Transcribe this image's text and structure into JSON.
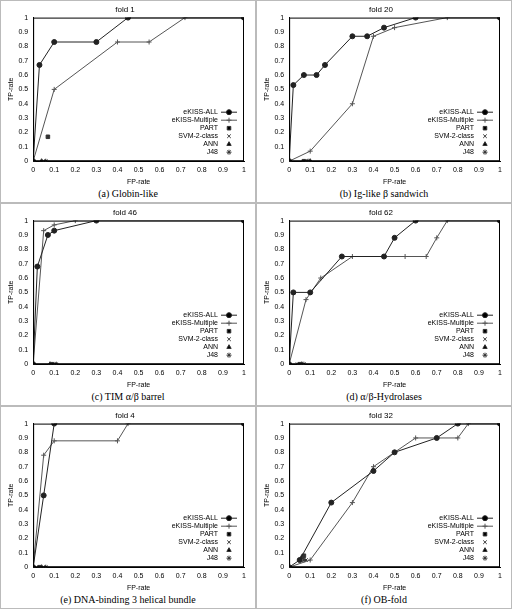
{
  "chart_data": [
    {
      "type": "line",
      "title": "fold 1",
      "caption": "(a) Globin-like",
      "x_label": "FP-rate",
      "y_label": "TP-rate",
      "xlim": [
        0,
        1
      ],
      "ylim": [
        0,
        1
      ],
      "xticks": [
        0,
        0.1,
        0.2,
        0.3,
        0.4,
        0.5,
        0.6,
        0.7,
        0.8,
        0.9,
        1
      ],
      "yticks": [
        0,
        0.1,
        0.2,
        0.3,
        0.4,
        0.5,
        0.6,
        0.7,
        0.8,
        0.9,
        1
      ],
      "grid": false,
      "legend": "bottom-right",
      "series": [
        {
          "name": "eKISS-ALL",
          "color": "#222222",
          "marker": "circle",
          "line_style": "solid",
          "x": [
            0,
            0.03,
            0.1,
            0.3,
            0.45,
            1
          ],
          "values": [
            0,
            0.67,
            0.83,
            0.83,
            1,
            1
          ]
        },
        {
          "name": "eKISS-Multiple",
          "color": "#555555",
          "marker": "cross",
          "line_style": "solid",
          "x": [
            0,
            0.1,
            0.4,
            0.55,
            0.72,
            1
          ],
          "values": [
            0,
            0.5,
            0.83,
            0.83,
            1,
            1
          ]
        },
        {
          "name": "PART",
          "color": "#333333",
          "marker": "rect",
          "line_style": "none",
          "x": [
            0.07,
            1
          ],
          "values": [
            0.17,
            1
          ]
        },
        {
          "name": "SVM-2-class",
          "color": "#333333",
          "marker": "crossRot",
          "line_style": "none",
          "x": [
            0.05,
            1
          ],
          "values": [
            0,
            1
          ]
        },
        {
          "name": "ANN",
          "color": "#333333",
          "marker": "triangle",
          "line_style": "none",
          "x": [
            0.04,
            1
          ],
          "values": [
            0,
            1
          ]
        },
        {
          "name": "J48",
          "color": "#333333",
          "marker": "star",
          "line_style": "none",
          "x": [
            0.06,
            1
          ],
          "values": [
            0,
            1
          ]
        }
      ]
    },
    {
      "type": "line",
      "title": "fold 20",
      "caption": "(b) Ig-like β sandwich",
      "x_label": "FP-rate",
      "y_label": "TP-rate",
      "xlim": [
        0,
        1
      ],
      "ylim": [
        0,
        1
      ],
      "xticks": [
        0,
        0.1,
        0.2,
        0.3,
        0.4,
        0.5,
        0.6,
        0.7,
        0.8,
        0.9,
        1
      ],
      "yticks": [
        0,
        0.1,
        0.2,
        0.3,
        0.4,
        0.5,
        0.6,
        0.7,
        0.8,
        0.9,
        1
      ],
      "grid": false,
      "legend": "bottom-right",
      "series": [
        {
          "name": "eKISS-ALL",
          "color": "#222222",
          "marker": "circle",
          "line_style": "solid",
          "x": [
            0,
            0.02,
            0.07,
            0.13,
            0.17,
            0.3,
            0.37,
            0.45,
            0.6,
            1
          ],
          "values": [
            0,
            0.53,
            0.6,
            0.6,
            0.67,
            0.87,
            0.87,
            0.93,
            1,
            1
          ]
        },
        {
          "name": "eKISS-Multiple",
          "color": "#555555",
          "marker": "cross",
          "line_style": "solid",
          "x": [
            0,
            0.1,
            0.3,
            0.4,
            0.5,
            0.75,
            1
          ],
          "values": [
            0,
            0.07,
            0.4,
            0.87,
            0.93,
            1,
            1
          ]
        },
        {
          "name": "PART",
          "color": "#333333",
          "marker": "rect",
          "line_style": "none",
          "x": [
            0.07,
            1
          ],
          "values": [
            0,
            1
          ]
        },
        {
          "name": "SVM-2-class",
          "color": "#333333",
          "marker": "crossRot",
          "line_style": "none",
          "x": [
            0.08,
            1
          ],
          "values": [
            0,
            1
          ]
        },
        {
          "name": "ANN",
          "color": "#333333",
          "marker": "triangle",
          "line_style": "none",
          "x": [
            0.1,
            1
          ],
          "values": [
            0,
            1
          ]
        },
        {
          "name": "J48",
          "color": "#333333",
          "marker": "star",
          "line_style": "none",
          "x": [
            0.09,
            1
          ],
          "values": [
            0,
            1
          ]
        }
      ]
    },
    {
      "type": "line",
      "title": "fold 46",
      "caption": "(c) TIM α/β barrel",
      "x_label": "FP-rate",
      "y_label": "TP-rate",
      "xlim": [
        0,
        1
      ],
      "ylim": [
        0,
        1
      ],
      "xticks": [
        0,
        0.1,
        0.2,
        0.3,
        0.4,
        0.5,
        0.6,
        0.7,
        0.8,
        0.9,
        1
      ],
      "yticks": [
        0,
        0.1,
        0.2,
        0.3,
        0.4,
        0.5,
        0.6,
        0.7,
        0.8,
        0.9,
        1
      ],
      "grid": false,
      "legend": "bottom-right",
      "series": [
        {
          "name": "eKISS-ALL",
          "color": "#222222",
          "marker": "circle",
          "line_style": "solid",
          "x": [
            0,
            0.02,
            0.07,
            0.1,
            0.3,
            1
          ],
          "values": [
            0,
            0.68,
            0.9,
            0.93,
            1,
            1
          ]
        },
        {
          "name": "eKISS-Multiple",
          "color": "#555555",
          "marker": "cross",
          "line_style": "solid",
          "x": [
            0,
            0.05,
            0.1,
            0.2,
            1
          ],
          "values": [
            0,
            0.93,
            0.97,
            1,
            1
          ]
        },
        {
          "name": "PART",
          "color": "#333333",
          "marker": "rect",
          "line_style": "none",
          "x": [
            0.09,
            1
          ],
          "values": [
            0,
            1
          ]
        },
        {
          "name": "SVM-2-class",
          "color": "#333333",
          "marker": "crossRot",
          "line_style": "none",
          "x": [
            0.1,
            1
          ],
          "values": [
            0,
            1
          ]
        },
        {
          "name": "ANN",
          "color": "#333333",
          "marker": "triangle",
          "line_style": "none",
          "x": [
            0.08,
            1
          ],
          "values": [
            0,
            1
          ]
        },
        {
          "name": "J48",
          "color": "#333333",
          "marker": "star",
          "line_style": "none",
          "x": [
            0.11,
            1
          ],
          "values": [
            0,
            1
          ]
        }
      ]
    },
    {
      "type": "line",
      "title": "fold 62",
      "caption": "(d) α/β-Hydrolases",
      "x_label": "FP-rate",
      "y_label": "TP-rate",
      "xlim": [
        0,
        1
      ],
      "ylim": [
        0,
        1
      ],
      "xticks": [
        0,
        0.1,
        0.2,
        0.3,
        0.4,
        0.5,
        0.6,
        0.7,
        0.8,
        0.9,
        1
      ],
      "yticks": [
        0,
        0.1,
        0.2,
        0.3,
        0.4,
        0.5,
        0.6,
        0.7,
        0.8,
        0.9,
        1
      ],
      "grid": false,
      "legend": "bottom-right",
      "series": [
        {
          "name": "eKISS-ALL",
          "color": "#222222",
          "marker": "circle",
          "line_style": "solid",
          "x": [
            0,
            0.02,
            0.1,
            0.25,
            0.45,
            0.5,
            0.6,
            1
          ],
          "values": [
            0,
            0.5,
            0.5,
            0.75,
            0.75,
            0.88,
            1,
            1
          ]
        },
        {
          "name": "eKISS-Multiple",
          "color": "#555555",
          "marker": "cross",
          "line_style": "solid",
          "x": [
            0,
            0.08,
            0.15,
            0.3,
            0.55,
            0.65,
            0.7,
            0.75,
            1
          ],
          "values": [
            0,
            0.45,
            0.6,
            0.75,
            0.75,
            0.75,
            0.88,
            1,
            1
          ]
        },
        {
          "name": "PART",
          "color": "#333333",
          "marker": "rect",
          "line_style": "none",
          "x": [
            0.05,
            1
          ],
          "values": [
            0,
            1
          ]
        },
        {
          "name": "SVM-2-class",
          "color": "#333333",
          "marker": "crossRot",
          "line_style": "none",
          "x": [
            0.04,
            1
          ],
          "values": [
            0,
            1
          ]
        },
        {
          "name": "ANN",
          "color": "#333333",
          "marker": "triangle",
          "line_style": "none",
          "x": [
            0.06,
            1
          ],
          "values": [
            0,
            1
          ]
        },
        {
          "name": "J48",
          "color": "#333333",
          "marker": "star",
          "line_style": "none",
          "x": [
            0.07,
            1
          ],
          "values": [
            0,
            1
          ]
        }
      ]
    },
    {
      "type": "line",
      "title": "fold 4",
      "caption": "(e) DNA-binding 3 helical bundle",
      "x_label": "FP-rate",
      "y_label": "TP-rate",
      "xlim": [
        0,
        1
      ],
      "ylim": [
        0,
        1
      ],
      "xticks": [
        0,
        0.1,
        0.2,
        0.3,
        0.4,
        0.5,
        0.6,
        0.7,
        0.8,
        0.9,
        1
      ],
      "yticks": [
        0,
        0.1,
        0.2,
        0.3,
        0.4,
        0.5,
        0.6,
        0.7,
        0.8,
        0.9,
        1
      ],
      "grid": false,
      "legend": "bottom-right",
      "series": [
        {
          "name": "eKISS-ALL",
          "color": "#222222",
          "marker": "circle",
          "line_style": "solid",
          "x": [
            0,
            0.05,
            0.1,
            1
          ],
          "values": [
            0,
            0.5,
            1,
            1
          ]
        },
        {
          "name": "eKISS-Multiple",
          "color": "#555555",
          "marker": "cross",
          "line_style": "solid",
          "x": [
            0,
            0.05,
            0.1,
            0.4,
            0.45,
            1
          ],
          "values": [
            0,
            0.78,
            0.88,
            0.88,
            1,
            1
          ]
        },
        {
          "name": "PART",
          "color": "#333333",
          "marker": "rect",
          "line_style": "none",
          "x": [
            0.03,
            1
          ],
          "values": [
            0,
            1
          ]
        },
        {
          "name": "SVM-2-class",
          "color": "#333333",
          "marker": "crossRot",
          "line_style": "none",
          "x": [
            0.05,
            1
          ],
          "values": [
            0,
            1
          ]
        },
        {
          "name": "ANN",
          "color": "#333333",
          "marker": "triangle",
          "line_style": "none",
          "x": [
            0.04,
            1
          ],
          "values": [
            0,
            1
          ]
        },
        {
          "name": "J48",
          "color": "#333333",
          "marker": "star",
          "line_style": "none",
          "x": [
            0.06,
            1
          ],
          "values": [
            0,
            1
          ]
        }
      ]
    },
    {
      "type": "line",
      "title": "fold 32",
      "caption": "(f) OB-fold",
      "x_label": "FP-rate",
      "y_label": "TP-rate",
      "xlim": [
        0,
        1
      ],
      "ylim": [
        0,
        1
      ],
      "xticks": [
        0,
        0.1,
        0.2,
        0.3,
        0.4,
        0.5,
        0.6,
        0.7,
        0.8,
        0.9,
        1
      ],
      "yticks": [
        0,
        0.1,
        0.2,
        0.3,
        0.4,
        0.5,
        0.6,
        0.7,
        0.8,
        0.9,
        1
      ],
      "grid": false,
      "legend": "bottom-right",
      "series": [
        {
          "name": "eKISS-ALL",
          "color": "#222222",
          "marker": "circle",
          "line_style": "solid",
          "x": [
            0,
            0.05,
            0.2,
            0.4,
            0.5,
            0.7,
            0.8,
            1
          ],
          "values": [
            0,
            0.05,
            0.45,
            0.67,
            0.8,
            0.9,
            1,
            1
          ]
        },
        {
          "name": "eKISS-Multiple",
          "color": "#555555",
          "marker": "cross",
          "line_style": "solid",
          "x": [
            0,
            0.1,
            0.3,
            0.4,
            0.6,
            0.8,
            0.85,
            1
          ],
          "values": [
            0,
            0.05,
            0.45,
            0.7,
            0.9,
            0.9,
            1,
            1
          ]
        },
        {
          "name": "PART",
          "color": "#333333",
          "marker": "rect",
          "line_style": "none",
          "x": [
            0.07,
            1
          ],
          "values": [
            0.08,
            1
          ]
        },
        {
          "name": "SVM-2-class",
          "color": "#333333",
          "marker": "crossRot",
          "line_style": "none",
          "x": [
            0.08,
            1
          ],
          "values": [
            0.05,
            1
          ]
        },
        {
          "name": "ANN",
          "color": "#333333",
          "marker": "triangle",
          "line_style": "none",
          "x": [
            0.06,
            1
          ],
          "values": [
            0.07,
            1
          ]
        },
        {
          "name": "J48",
          "color": "#333333",
          "marker": "star",
          "line_style": "none",
          "x": [
            0.07,
            1
          ],
          "values": [
            0.05,
            1
          ]
        }
      ]
    }
  ]
}
